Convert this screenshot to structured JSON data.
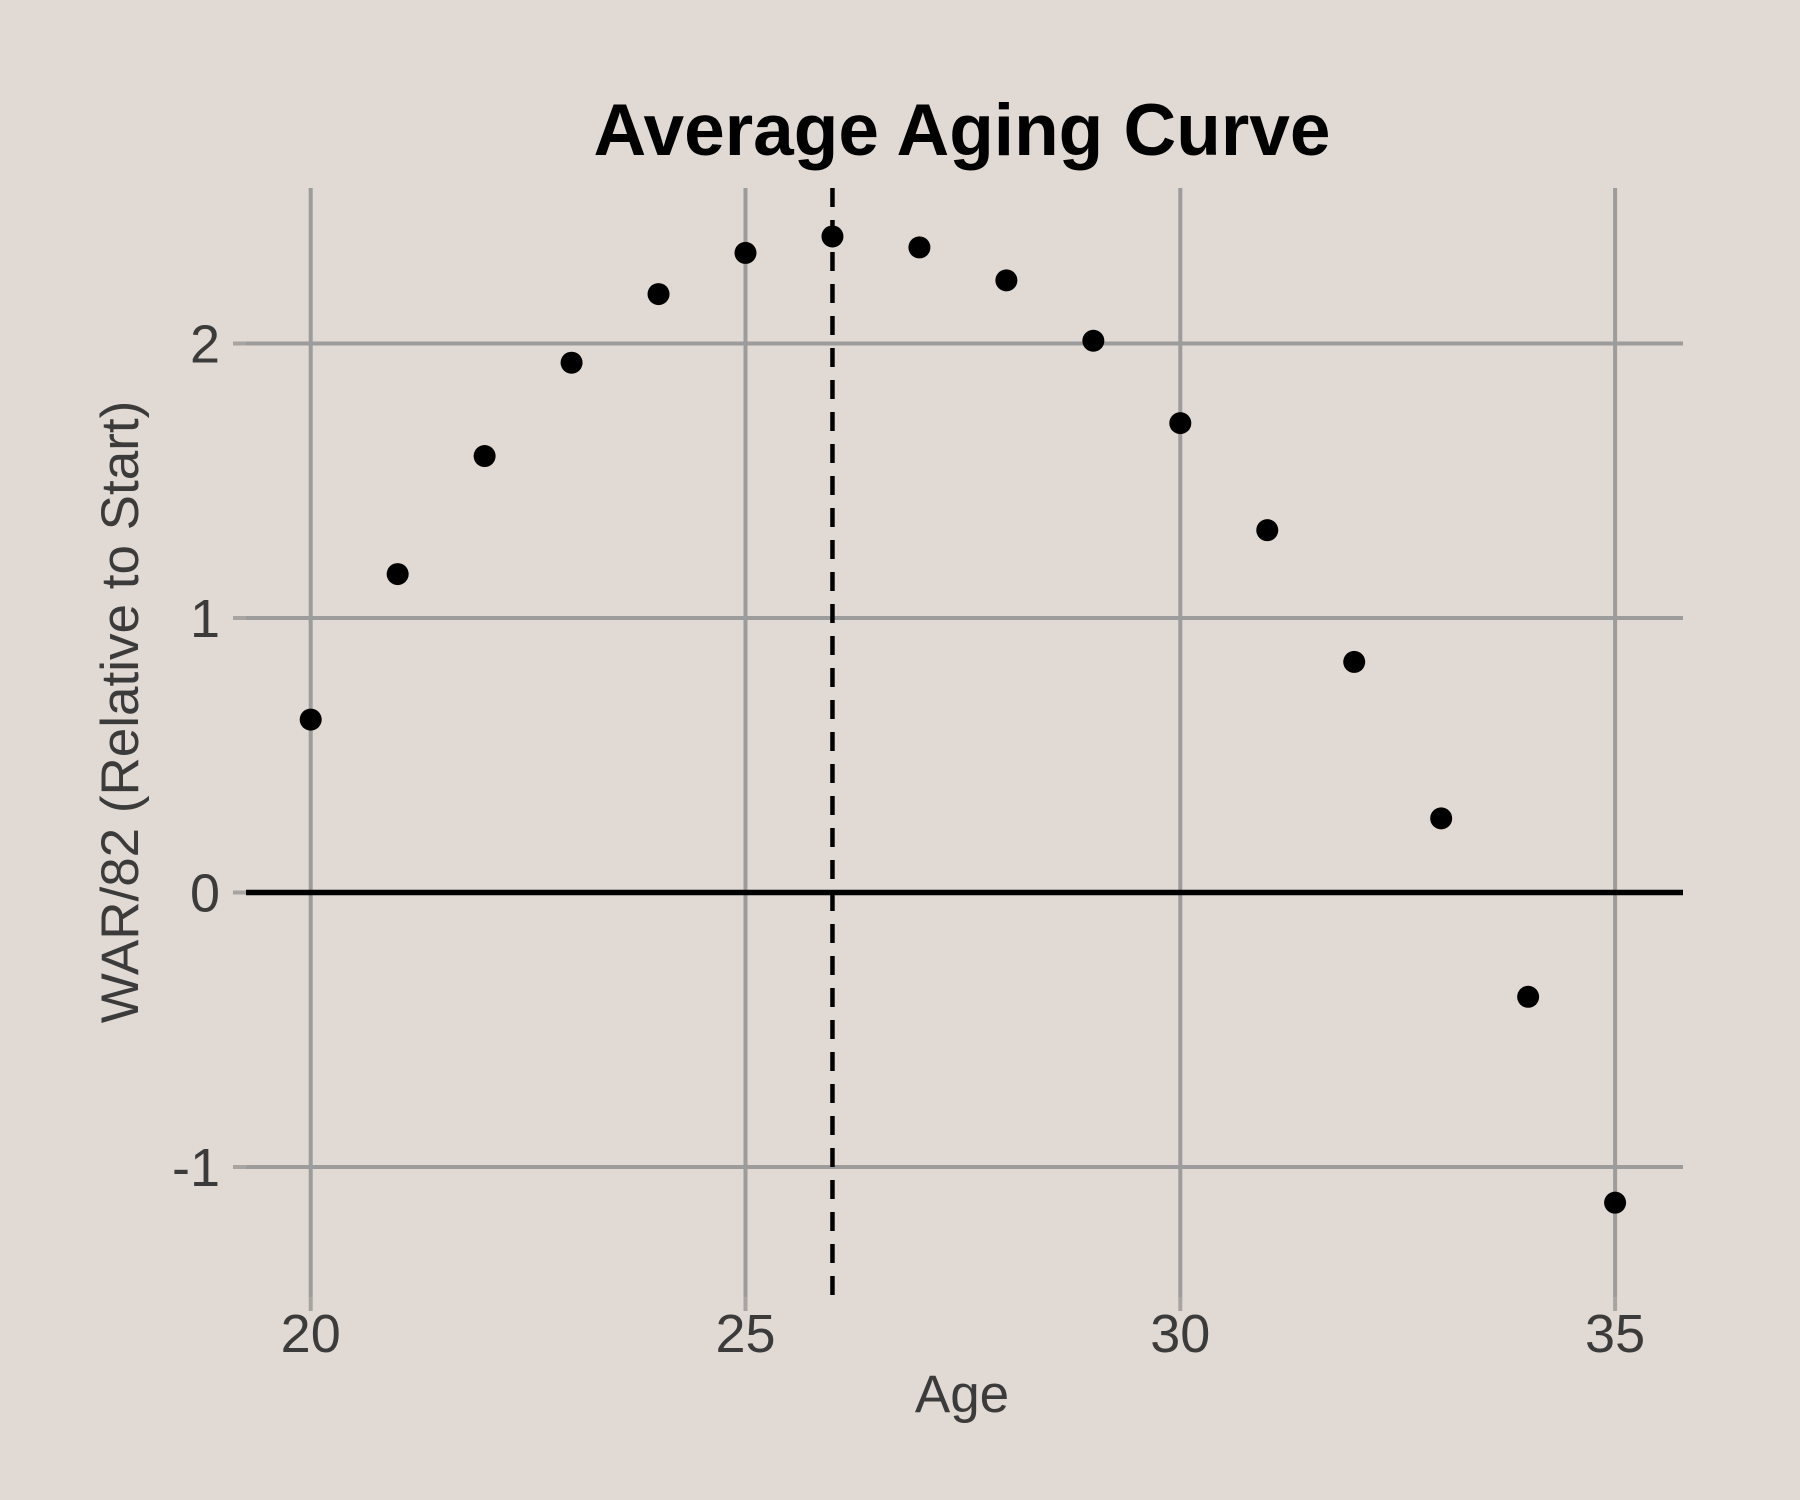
{
  "chart_data": {
    "type": "scatter",
    "title": "Average Aging Curve",
    "xlabel": "Age",
    "ylabel": "WAR/82 (Relative to Start)",
    "x": [
      20,
      21,
      22,
      23,
      24,
      25,
      26,
      27,
      28,
      29,
      30,
      31,
      32,
      33,
      34,
      35
    ],
    "y": [
      0.63,
      1.16,
      1.59,
      1.93,
      2.18,
      2.33,
      2.39,
      2.35,
      2.23,
      2.01,
      1.71,
      1.32,
      0.84,
      0.27,
      -0.38,
      -1.13
    ],
    "x_ticks": [
      20,
      25,
      30,
      35
    ],
    "x_tick_labels": [
      "20",
      "25",
      "30",
      "35"
    ],
    "y_ticks": [
      -1,
      0,
      1,
      2
    ],
    "y_tick_labels": [
      "-1",
      "0",
      "1",
      "2"
    ],
    "xlim": [
      19.1,
      35.8
    ],
    "ylim": [
      -1.47,
      2.57
    ],
    "grid": true,
    "legend": false,
    "reference_lines": {
      "vline": {
        "x": 26,
        "style": "dashed"
      },
      "hline": {
        "y": 0,
        "style": "solid"
      }
    },
    "colors": {
      "background": "#e1d9d3",
      "gridline": "#9c9c9c",
      "tick_mark": "#a8a4a1",
      "zero_line": "#000000",
      "dashed_line": "#000000",
      "point": "#000000",
      "tick_label": "#3b3b3b",
      "axis_title": "#3b3b3b",
      "title": "#000000"
    }
  }
}
